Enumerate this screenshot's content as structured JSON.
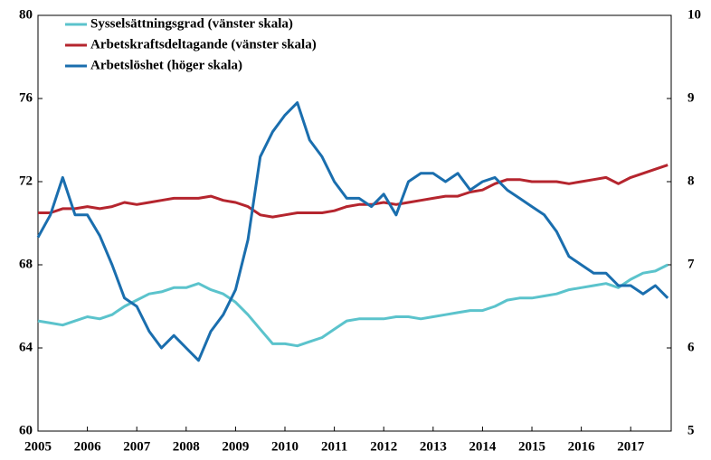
{
  "chart_data": {
    "type": "line",
    "x": [
      2005.0,
      2005.25,
      2005.5,
      2005.75,
      2006.0,
      2006.25,
      2006.5,
      2006.75,
      2007.0,
      2007.25,
      2007.5,
      2007.75,
      2008.0,
      2008.25,
      2008.5,
      2008.75,
      2009.0,
      2009.25,
      2009.5,
      2009.75,
      2010.0,
      2010.25,
      2010.5,
      2010.75,
      2011.0,
      2011.25,
      2011.5,
      2011.75,
      2012.0,
      2012.25,
      2012.5,
      2012.75,
      2013.0,
      2013.25,
      2013.5,
      2013.75,
      2014.0,
      2014.25,
      2014.5,
      2014.75,
      2015.0,
      2015.25,
      2015.5,
      2015.75,
      2016.0,
      2016.25,
      2016.5,
      2016.75,
      2017.0,
      2017.25,
      2017.5,
      2017.75
    ],
    "series": [
      {
        "name": "Sysselsättningsgrad (vänster skala)",
        "color": "#5bc3cc",
        "values": [
          65.3,
          65.2,
          65.1,
          65.3,
          65.5,
          65.4,
          65.6,
          66.0,
          66.3,
          66.6,
          66.7,
          66.9,
          66.9,
          67.1,
          66.8,
          66.6,
          66.2,
          65.6,
          64.9,
          64.2,
          64.2,
          64.1,
          64.3,
          64.5,
          64.9,
          65.3,
          65.4,
          65.4,
          65.4,
          65.5,
          65.5,
          65.4,
          65.5,
          65.6,
          65.7,
          65.8,
          65.8,
          66.0,
          66.3,
          66.4,
          66.4,
          66.5,
          66.6,
          66.8,
          66.9,
          67.0,
          67.1,
          66.9,
          67.3,
          67.6,
          67.7,
          68.0
        ]
      },
      {
        "name": "Arbetskraftsdeltagande (vänster skala)",
        "color": "#b5252e",
        "values": [
          70.5,
          70.5,
          70.7,
          70.7,
          70.8,
          70.7,
          70.8,
          71.0,
          70.9,
          71.0,
          71.1,
          71.2,
          71.2,
          71.2,
          71.3,
          71.1,
          71.0,
          70.8,
          70.4,
          70.3,
          70.4,
          70.5,
          70.5,
          70.5,
          70.6,
          70.8,
          70.9,
          70.9,
          71.0,
          70.9,
          71.0,
          71.1,
          71.2,
          71.3,
          71.3,
          71.5,
          71.6,
          71.9,
          72.1,
          72.1,
          72.0,
          72.0,
          72.0,
          71.9,
          72.0,
          72.1,
          72.2,
          71.9,
          72.2,
          72.4,
          72.6,
          72.8
        ]
      },
      {
        "name": "Arbetslöshet (höger skala)",
        "color": "#1a6eae",
        "axis": "y2",
        "values": [
          7.33,
          7.6,
          8.05,
          7.6,
          7.6,
          7.35,
          7.0,
          6.6,
          6.5,
          6.2,
          6.0,
          6.15,
          6.0,
          5.85,
          6.2,
          6.4,
          6.7,
          7.3,
          8.3,
          8.6,
          8.8,
          8.95,
          8.5,
          8.3,
          8.0,
          7.8,
          7.8,
          7.7,
          7.85,
          7.6,
          8.0,
          8.1,
          8.1,
          8.0,
          8.1,
          7.9,
          8.0,
          8.05,
          7.9,
          7.8,
          7.7,
          7.6,
          7.4,
          7.1,
          7.0,
          6.9,
          6.9,
          6.75,
          6.75,
          6.65,
          6.75,
          6.6
        ]
      }
    ],
    "xlim": [
      2005,
      2017.82
    ],
    "xticks": [
      2005,
      2006,
      2007,
      2008,
      2009,
      2010,
      2011,
      2012,
      2013,
      2014,
      2015,
      2016,
      2017
    ],
    "ylim": [
      60,
      80
    ],
    "yticks": [
      60,
      64,
      68,
      72,
      76,
      80
    ],
    "y2lim": [
      5,
      10
    ],
    "y2ticks": [
      5,
      6,
      7,
      8,
      9,
      10
    ],
    "legend": "upper left"
  }
}
